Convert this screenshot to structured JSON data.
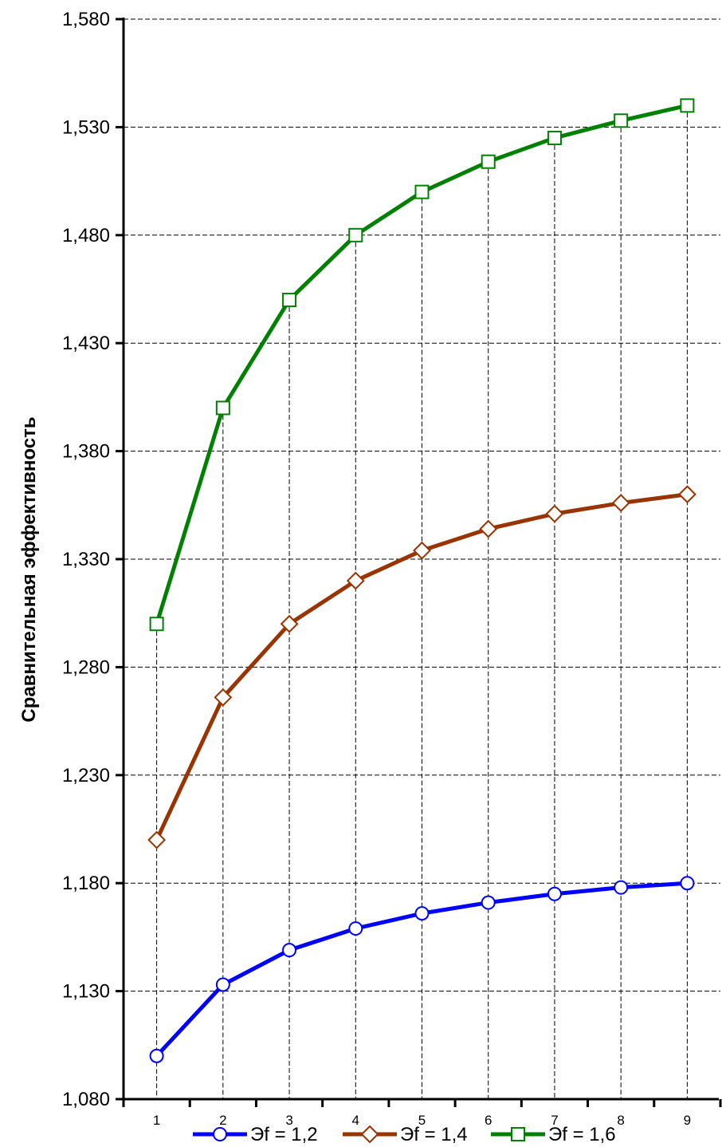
{
  "chart_data": {
    "type": "line",
    "title": "",
    "xlabel": "",
    "ylabel": "Сравнительная эффективность",
    "x": [
      1,
      2,
      3,
      4,
      5,
      6,
      7,
      8,
      9
    ],
    "x_tick_labels": [
      "1",
      "2",
      "3",
      "4",
      "5",
      "6",
      "7",
      "8",
      "9"
    ],
    "ylim": [
      1.08,
      1.58
    ],
    "y_ticks": [
      1.08,
      1.13,
      1.18,
      1.23,
      1.28,
      1.33,
      1.38,
      1.43,
      1.48,
      1.53,
      1.58
    ],
    "y_tick_labels": [
      "1,080",
      "1,130",
      "1,180",
      "1,230",
      "1,280",
      "1,330",
      "1,380",
      "1,430",
      "1,480",
      "1,530",
      "1,580"
    ],
    "grid": true,
    "legend_position": "bottom",
    "series": [
      {
        "name": "Эf = 1,2",
        "color": "#0000ff",
        "marker": "circle",
        "values": [
          1.1,
          1.133,
          1.149,
          1.159,
          1.166,
          1.171,
          1.175,
          1.178,
          1.18
        ]
      },
      {
        "name": "Эf = 1,4",
        "color": "#993300",
        "marker": "diamond",
        "values": [
          1.2,
          1.266,
          1.3,
          1.32,
          1.334,
          1.344,
          1.351,
          1.356,
          1.36
        ]
      },
      {
        "name": "Эf = 1,6",
        "color": "#008000",
        "marker": "square",
        "values": [
          1.3,
          1.4,
          1.45,
          1.48,
          1.5,
          1.514,
          1.525,
          1.533,
          1.54
        ]
      }
    ]
  }
}
